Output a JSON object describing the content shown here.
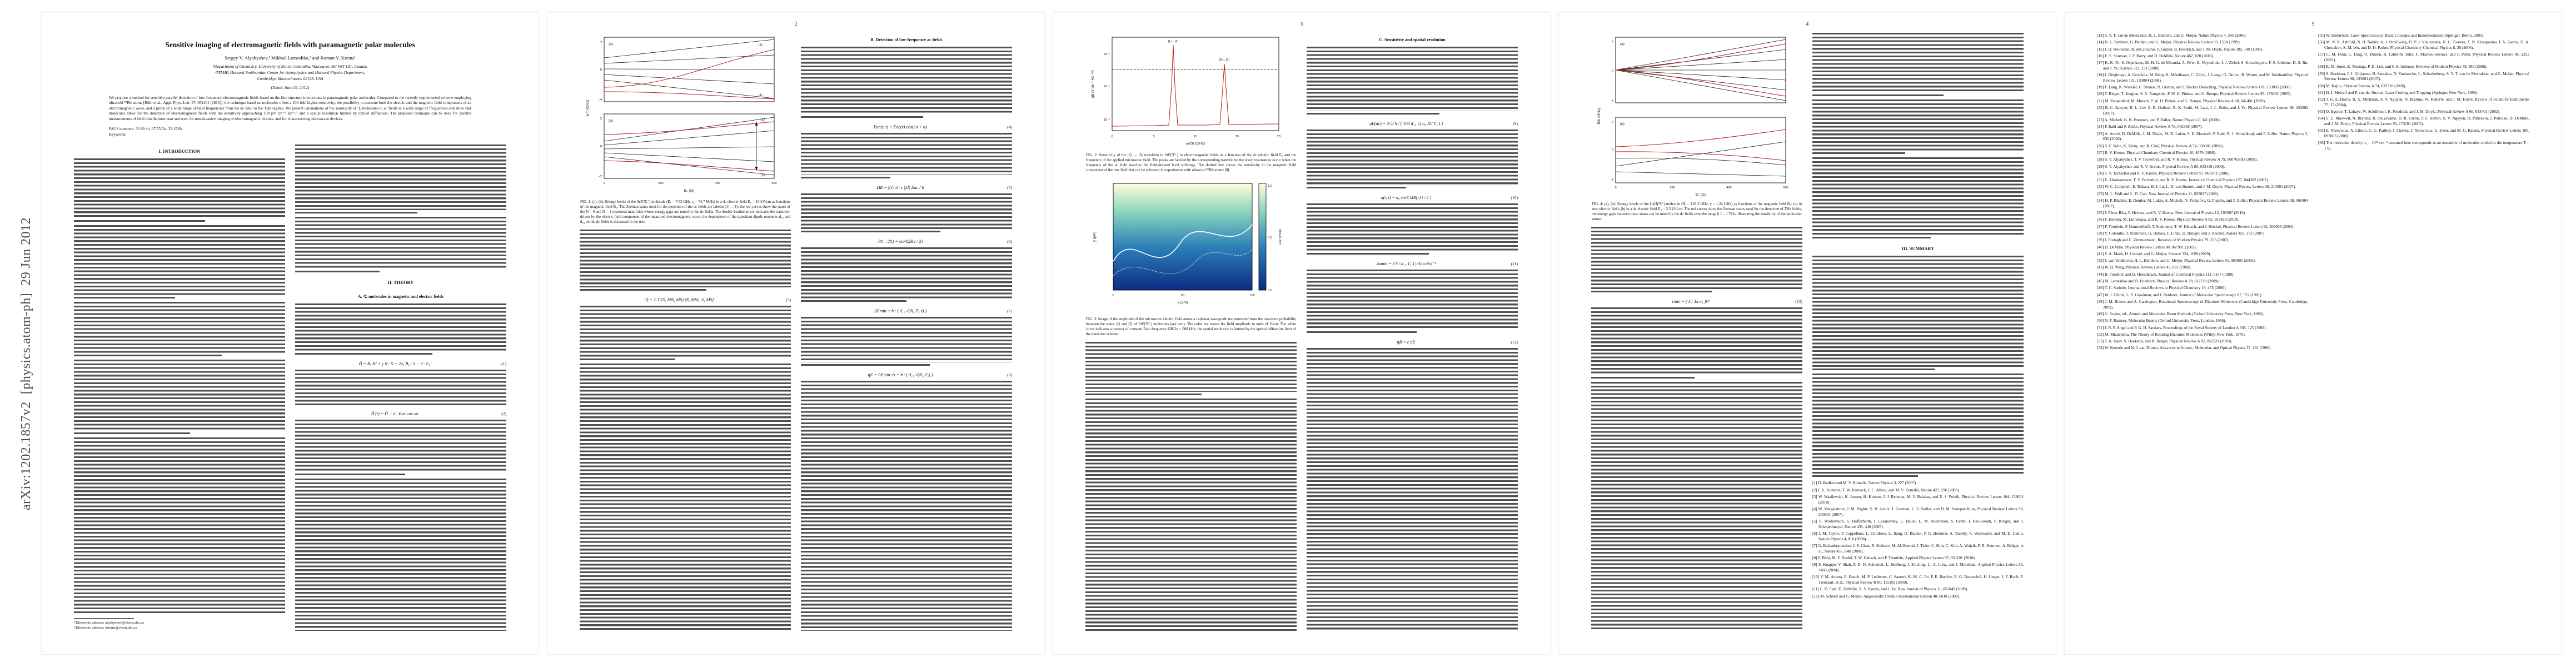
{
  "stamp": "arXiv:1202.1857v2  [physics.atom-ph]  29 Jun 2012",
  "front": {
    "title": "Sensitive imaging of electromagnetic fields with paramagnetic polar molecules",
    "authors": "Sergey V. Alyabyshev,¹ Mikhail Lemeshko,² and Roman V. Krems¹",
    "affil1": "¹Department of Chemistry, University of British Columbia, Vancouver, BC V6T 1Z1, Canada",
    "affil2": "²ITAMP, Harvard-Smithsonian Center for Astrophysics and Harvard Physics Department,",
    "affil3": "Cambridge, Massachusetts 02138, USA",
    "dated": "(Dated: June 29, 2012)",
    "abstract": "We propose a method for sensitive parallel detection of low-frequency electromagnetic fields based on the fine structure interactions in paramagnetic polar molecules. Compared to the recently implemented scheme employing ultracold ⁸⁷Rb atoms [Böhi et al., Appl. Phys. Lett. 97, 051101 (2010)], the technique based on molecules offers a 100-fold higher sensitivity, the possibility to measure both the electric and the magnetic field components of an electromagnetic wave, and a probe of a wide range of field frequencies from the dc limit to the THz regime. We present calculations of the sensitivity of ²Σ molecules to ac fields in a wide range of frequencies and show that molecules allow for the detection of electromagnetic fields with the sensitivity approaching 100 pV cm⁻¹ Hz⁻¹/² and a spatial resolution limited by optical diffraction. The proposed technique can be used for parallel measurements of field distributions near surfaces, for non-invasive imaging of electromagnetic circuits, and for characterizing microwave devices.",
    "pacs": "PACS numbers: 33.90.+h, 07.55.Ge, 33.15.Kr",
    "keywords": "Keywords:"
  },
  "pagenums": {
    "p2": "2",
    "p3": "3",
    "p4": "4",
    "p5": "5"
  },
  "headings": {
    "intro": "I. INTRODUCTION",
    "theory": "II. THEORY",
    "subA": "A. ²Σ molecules in magnetic and electric fields",
    "subB": "B. Detection of low-frequency ac fields",
    "subC": "C. Sensitivity and spatial resolution",
    "summary": "III. SUMMARY"
  },
  "footnotes": {
    "fn1": "*Electronic address: alyabyshev@chem.ubc.ca",
    "fn2": "†Electronic address: rkrems@chem.ubc.ca"
  },
  "equations": {
    "eq1": {
      "body": "Ĥ = Bₑ N² + γ N · S + 2μ₀ B₀ · S − d · E₀",
      "num": "(1)"
    },
    "eq2": {
      "body": "Ĥ′(t) = Ĥ − d · Eac cos ωt",
      "num": "(2)"
    },
    "eq3": {
      "body": "|i⟩ = Σ C(N, MN, MS) |N, MN⟩ |S, MS⟩",
      "num": "(3)"
    },
    "eq4": {
      "body": "Eac(r, t) = Eac(r) cos(ωt + φ)",
      "num": "(4)"
    },
    "eq5": {
      "body": "ΩR = |⟨1| d · ε |2⟩| Eac / ħ",
      "num": "(5)"
    },
    "eq6": {
      "body": "P1→2(t) = sin²(ΩR t / 2)",
      "num": "(6)"
    },
    "eq7": {
      "body": "ΔEmin = ħ / ( d₁₂ √(N₀ T₂ τ) )",
      "num": "(7)"
    },
    "eq8": {
      "body": "ηE = ΔEmin √τ = ħ / ( d₁₂ √(N₀ T₂) )",
      "num": "(8)"
    },
    "eq9": {
      "body": "ηE(dc) = 2√2 ħ / ( 100 d₁₂ √( n₀ ΔV T₂ ) )",
      "num": "(9)"
    },
    "eq10": {
      "body": "n(r, t) = n₀ sin²( ΩR(r) t / 2 )",
      "num": "(10)"
    },
    "eq11": {
      "body": "Δxmin = ( ħ / d₁₂ T₂ ) |∂Eac/∂x|⁻¹",
      "num": "(11)"
    },
    "eq12": {
      "body": "ηB = c ηE",
      "num": "(12)"
    },
    "eq13": {
      "body": "rmin = ( 3 / 4π n₀ )¹⁄³",
      "num": "(13)"
    }
  },
  "figures": {
    "fig1": {
      "caption": "FIG. 1: (a), (b): Energy levels of the SrF(²Σ⁺) molecule (Bₑ = 7.53 GHz, γ = 74.7 MHz) in a dc electric field E₀ = 10 kV/cm as functions of the magnetic field B₀. The Zeeman states used for the detection of the ac fields are labeled |1⟩ – |4⟩; the red curves show the states of the N = 0 and N = 1 rotational manifolds whose energy gaps are tuned by the dc fields. The double-headed arrow indicates the transition driven by the electric field component of the measured electromagnetic wave; the dependence of the transition dipole moments d₁₂ and d₃₄ on the dc fields is discussed in the text.",
      "pa": "(a)",
      "pb": "(b)",
      "s1": "|1⟩",
      "s2": "|2⟩",
      "s3": "|3⟩",
      "s4": "|4⟩",
      "xlabel": "B₀ (G)",
      "ylabel": "E/h (GHz)",
      "xticks": [
        "0",
        "200",
        "400",
        "600"
      ],
      "yticksA": [
        "4",
        "0",
        "−4"
      ],
      "yticksB": [
        "2",
        "0",
        "−2"
      ]
    },
    "fig2": {
      "caption": "FIG. 2: Sensitivity of the |2⟩ → |3⟩ transition in SrF(²Σ⁺) to electromagnetic fields as a function of the dc electric field E₀ and the frequency of the applied microwave field. The peaks are labeled by the corresponding transitions; the sharp resonances occur when the frequency of the ac field matches the field-dressed level splittings. The dashed line shows the sensitivity to the magnetic field component of the mw field that can be achieved in experiments with ultracold ⁸⁷Rb atoms [8].",
      "peak1": "|1⟩→|2⟩",
      "peak2": "|2⟩→|3⟩",
      "xlabel": "ω/2π (GHz)",
      "ylabel": "ηE (V cm⁻¹ Hz⁻¹/²)",
      "xticks": [
        "0",
        "5",
        "10",
        "15",
        "20"
      ],
      "yticks": [
        "10⁻⁴",
        "10⁻⁵",
        "10⁻⁶"
      ]
    },
    "fig3": {
      "caption": "FIG. 3: Image of the amplitude of the microwave electric field above a coplanar waveguide reconstructed from the transition probability between the states |2⟩ and |3⟩ of SrF(²Σ⁺) molecules (see text). The color bar shows the field amplitude in units of V/cm. The white curve indicates a contour of constant Rabi frequency ΩR/2π = 500 kHz; the spatial resolution is limited by the optical diffraction limit of the detection scheme.",
      "xlabel": "x (μm)",
      "ylabel": "y (μm)",
      "clabel": "Eac (V/cm)",
      "xticks": [
        "0",
        "50",
        "100"
      ],
      "cticks": [
        "1.0",
        "0.5",
        "0.0"
      ]
    },
    "fig4": {
      "caption": "FIG. 4: (a), (b): Energy levels of the CaH(²Σ⁺) molecule (Bₑ = 128.3 GHz, γ = 1.24 GHz) as functions of the magnetic field B₀: (a) in zero electric field; (b) in a dc electric field E₀ = 2.5 kV/cm. The red curves show the Zeeman states used for the detection of THz fields; the energy gaps between these states can be tuned by the dc fields over the range 0.1 – 1 THz, illustrating the tunability of the molecular sensor.",
      "pa": "(a)",
      "pb": "(b)",
      "xlabel": "B₀ (G)",
      "ylabel": "E/h (GHz)",
      "xticks": [
        "0",
        "200",
        "400",
        "600"
      ],
      "yticksA": [
        "4",
        "0",
        "−4"
      ],
      "yticksB": [
        "2",
        "0",
        "−2"
      ]
    }
  },
  "refs": {
    "p4": [
      "[1] D. Budker and M. V. Romalis, Nature Physics 3, 227 (2007).",
      "[2] I. K. Kominis, T. W. Kornack, J. C. Allred, and M. V. Romalis, Nature 422, 596 (2003).",
      "[3] W. Wasilewski, K. Jensen, H. Krauter, J. J. Renema, M. V. Balabas, and E. S. Polzik, Physical Review Letters 104, 133601 (2010).",
      "[4] M. Vengalattore, J. M. Higbie, S. R. Leslie, J. Guzman, L. E. Sadler, and D. M. Stamper-Kurn, Physical Review Letters 98, 200801 (2007).",
      "[5] S. Wildermuth, S. Hofferberth, I. Lesanovsky, E. Haller, L. M. Andersson, S. Groth, I. Bar-Joseph, P. Krüger, and J. Schmiedmayer, Nature 435, 440 (2005).",
      "[6] J. M. Taylor, P. Cappellaro, L. Childress, L. Jiang, D. Budker, P. R. Hemmer, A. Yacoby, R. Walsworth, and M. D. Lukin, Nature Physics 4, 810 (2008).",
      "[7] G. Balasubramanian, I. Y. Chan, R. Kolesov, M. Al-Hmoud, J. Tisler, C. Shin, C. Kim, A. Wojcik, P. R. Hemmer, A. Krüger, et al., Nature 455, 648 (2008).",
      "[8] P. Böhi, M. F. Riedel, T. W. Hänsch, and P. Treutlein, Applied Physics Letters 97, 051101 (2010).",
      "[9] S. Knappe, V. Shah, P. D. D. Schwindt, L. Hollberg, J. Kitching, L.-A. Liew, and J. Moreland, Applied Physics Letters 85, 1460 (2004).",
      "[10] V. M. Acosta, E. Bauch, M. P. Ledbetter, C. Santori, K.-M. C. Fu, P. E. Barclay, R. G. Beausoleil, H. Linget, J. F. Roch, F. Treussart, et al., Physical Review B 80, 115202 (2009).",
      "[11] L. D. Carr, D. DeMille, R. V. Krems, and J. Ye, New Journal of Physics 11, 055049 (2009).",
      "[12] M. Schnell and G. Meijer, Angewandte Chemie International Edition 48, 6010 (2009)."
    ],
    "p5L": [
      "[13] S. Y. T. van de Meerakker, H. L. Bethlem, and G. Meijer, Nature Physics 4, 595 (2008).",
      "[14] H. L. Bethlem, G. Berden, and G. Meijer, Physical Review Letters 83, 1558 (1999).",
      "[15] J. D. Weinstein, R. deCarvalho, T. Guillet, B. Friedrich, and J. M. Doyle, Nature 395, 148 (1998).",
      "[16] E. S. Shuman, J. F. Barry, and D. DeMille, Nature 467, 820 (2010).",
      "[17] K.-K. Ni, S. Ospelkaus, M. H. G. de Miranda, A. Pe'er, B. Neyenhuis, J. J. Zirbel, S. Kotochigova, P. S. Julienne, D. S. Jin, and J. Ye, Science 322, 231 (2008).",
      "[18] J. Deiglmayr, A. Grochola, M. Repp, K. Mörtlbauer, C. Glück, J. Lange, O. Dulieu, R. Wester, and M. Weidemüller, Physical Review Letters 101, 133004 (2008).",
      "[19] F. Lang, K. Winkler, C. Strauss, R. Grimm, and J. Hecker Denschlag, Physical Review Letters 101, 133005 (2008).",
      "[20] T. Rieger, T. Junglen, S. A. Rangwala, P. W. H. Pinkse, and G. Rempe, Physical Review Letters 95, 173002 (2005).",
      "[21] M. Zeppenfeld, M. Motsch, P. W. H. Pinkse, and G. Rempe, Physical Review A 80, 041401 (2009).",
      "[22] B. C. Sawyer, B. L. Lev, E. R. Hudson, B. K. Stuhl, M. Lara, J. L. Bohn, and J. Ye, Physical Review Letters 98, 253002 (2007).",
      "[23] A. Micheli, G. K. Brennen, and P. Zoller, Nature Physics 2, 341 (2006).",
      "[24] P. Rabl and P. Zoller, Physical Review A 76, 042308 (2007).",
      "[25] A. André, D. DeMille, J. M. Doyle, M. D. Lukin, S. E. Maxwell, P. Rabl, R. J. Schoelkopf, and P. Zoller, Nature Physics 2, 636 (2006).",
      "[26] S. F. Yelin, K. Kirby, and R. Côté, Physical Review A 74, 050301 (2006).",
      "[27] R. V. Krems, Physical Chemistry Chemical Physics 10, 4079 (2008).",
      "[28] S. V. Alyabyshev, T. V. Tscherbul, and R. V. Krems, Physical Review A 79, 060703(R) (2009).",
      "[29] S. V. Alyabyshev and R. V. Krems, Physical Review A 80, 033419 (2009).",
      "[30] T. V. Tscherbul and R. V. Krems, Physical Review Letters 97, 083201 (2006).",
      "[31] E. Abrahamsson, T. V. Tscherbul, and R. V. Krems, Journal of Chemical Physics 127, 044302 (2007).",
      "[32] W. C. Campbell, E. Tsikata, H.-I. Lu, L. D. van Buuren, and J. M. Doyle, Physical Review Letters 98, 213001 (2007).",
      "[33] M. L. Wall and L. D. Carr, New Journal of Physics 11, 055027 (2009).",
      "[34] H. P. Büchler, E. Demler, M. Lukin, A. Micheli, N. Prokof'ev, G. Pupillo, and P. Zoller, Physical Review Letters 98, 060404 (2007).",
      "[35] J. Pérez-Ríos, F. Herrera, and R. V. Krems, New Journal of Physics 12, 103007 (2010).",
      "[36] F. Herrera, M. Litinskaya, and R. V. Krems, Physical Review A 82, 033428 (2010).",
      "[37] P. Treutlein, P. Hommelhoff, T. Steinmetz, T. W. Hänsch, and J. Reichel, Physical Review Letters 92, 203005 (2004).",
      "[38] Y. Colombe, T. Steinmetz, G. Dubois, F. Linke, D. Hunger, and J. Reichel, Nature 450, 272 (2007).",
      "[39] J. Fortágh and C. Zimmermann, Reviews of Modern Physics 79, 235 (2007).",
      "[40] D. DeMille, Physical Review Letters 88, 067901 (2002).",
      "[41] S. A. Meek, H. Conrad, and G. Meijer, Science 324, 1699 (2009).",
      "[42] J. van Veldhoven, H. L. Bethlem, and G. Meijer, Physical Review Letters 94, 083001 (2005).",
      "[43] W. H. Wing, Physical Review Letters 45, 631 (1980).",
      "[44] B. Friedrich and D. Herschbach, Journal of Chemical Physics 111, 6157 (1999).",
      "[45] M. Lemeshko and B. Friedrich, Physical Review A 79, 012718 (2009).",
      "[46] T. C. Steimle, International Reviews in Physical Chemistry 19, 455 (2000).",
      "[47] W. J. Childs, L. S. Goodman, and I. Renhorn, Journal of Molecular Spectroscopy 87, 522 (1981).",
      "[48] J. M. Brown and A. Carrington, Rotational Spectroscopy of Diatomic Molecules (Cambridge University Press, Cambridge, 2003).",
      "[49] G. Scoles, ed., Atomic and Molecular Beam Methods (Oxford University Press, New York, 1988).",
      "[50] N. F. Ramsey, Molecular Beams (Oxford University Press, London, 1956).",
      "[51] J. R. P. Angel and P. G. H. Sandars, Proceedings of the Royal Society of London A 305, 125 (1968).",
      "[52] M. Mizushima, The Theory of Rotating Diatomic Molecules (Wiley, New York, 1975).",
      "[53] T. A. Isaev, S. Hoekstra, and R. Berger, Physical Review A 82, 052521 (2010).",
      "[54] W. Ketterle and N. J. van Druten, Advances in Atomic, Molecular, and Optical Physics 37, 181 (1996)."
    ],
    "p5R": [
      "[55] W. Demtröder, Laser Spectroscopy: Basic Concepts and Instrumentation (Springer, Berlin, 2003).",
      "[56] M. N. R. Ashfold, N. H. Nahler, A. J. Orr-Ewing, O. P. J. Vieuxmaire, R. L. Toomes, T. N. Kitsopoulos, I. A. Garcia, D. A. Chestakov, S.-M. Wu, and D. H. Parker, Physical Chemistry Chemical Physics 8, 26 (2006).",
      "[57] C. M. Dion, C. Drag, O. Dulieu, B. Laburthe Tolra, F. Masnou-Seeuws, and P. Pillet, Physical Review Letters 86, 2253 (2001).",
      "[58] K. M. Jones, E. Tiesinga, P. D. Lett, and P. S. Julienne, Reviews of Modern Physics 78, 483 (2006).",
      "[59] S. Hoekstra, J. J. Gilijamse, B. Sartakov, N. Vanhaecke, L. Scharfenberg, S. Y. T. van de Meerakker, and G. Meijer, Physical Review Letters 98, 133001 (2007).",
      "[60] M. Kajita, Physical Review A 74, 032710 (2006).",
      "[61] H. J. Metcalf and P. van der Straten, Laser Cooling and Trapping (Springer, New York, 1999).",
      "[62] J. G. E. Harris, R. A. Michniak, S. V. Nguyen, N. Brahms, W. Ketterle, and J. M. Doyle, Review of Scientific Instruments 75, 17 (2004).",
      "[63] D. Egorov, T. Lahaye, W. Schöllkopf, B. Friedrich, and J. M. Doyle, Physical Review A 66, 043401 (2002).",
      "[64] S. E. Maxwell, N. Brahms, R. deCarvalho, D. R. Glenn, J. S. Helton, S. V. Nguyen, D. Patterson, J. Petricka, D. DeMille, and J. M. Doyle, Physical Review Letters 95, 173201 (2005).",
      "[65] E. Narevicius, A. Libson, C. G. Parthey, I. Chavez, J. Narevicius, U. Even, and M. G. Raizen, Physical Review Letters 100, 093003 (2008).",
      "[66] The molecular density n₀ = 10¹² cm⁻³ assumed here corresponds to an ensemble of molecules cooled to the temperature T = 1 K."
    ]
  }
}
